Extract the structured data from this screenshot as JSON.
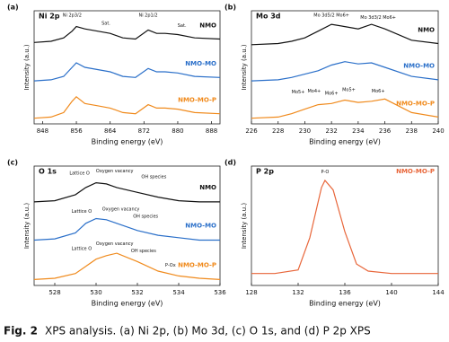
{
  "chart_data": [
    {
      "type": "line",
      "panel": "(a)",
      "title": "Ni 2p",
      "x_label": "Binding energy (eV)",
      "y_label": "Intensity (a.u.)",
      "xlim": [
        846,
        890
      ],
      "xticks": [
        848,
        856,
        864,
        872,
        880,
        888
      ],
      "ylim": [
        0,
        100
      ],
      "x": [
        846,
        850,
        853,
        855,
        856,
        858,
        861,
        864,
        867,
        870,
        873,
        875,
        877,
        880,
        884,
        890
      ],
      "series": [
        {
          "name": "NMO",
          "color": "#111111",
          "values": [
            72,
            73,
            76,
            82,
            86,
            84,
            82,
            80,
            76,
            75,
            83,
            80,
            80,
            79,
            76,
            75
          ]
        },
        {
          "name": "NMO-MO",
          "color": "#2a6fc9",
          "values": [
            38,
            39,
            42,
            50,
            54,
            50,
            48,
            46,
            42,
            41,
            49,
            46,
            46,
            45,
            42,
            41
          ]
        },
        {
          "name": "NMO-MO-P",
          "color": "#f08a1c",
          "values": [
            5,
            6,
            10,
            20,
            24,
            18,
            16,
            14,
            10,
            9,
            17,
            14,
            14,
            13,
            10,
            9
          ]
        }
      ],
      "annotations": [
        {
          "text": "Ni 2p3/2",
          "x": 855,
          "y": 96
        },
        {
          "text": "Sat.",
          "x": 863,
          "y": 89
        },
        {
          "text": "Ni 2p1/2",
          "x": 873,
          "y": 96
        },
        {
          "text": "Sat.",
          "x": 881,
          "y": 87
        }
      ]
    },
    {
      "type": "line",
      "panel": "(b)",
      "title": "Mo 3d",
      "x_label": "Binding energy (eV)",
      "y_label": "Intensity (a.u.)",
      "xlim": [
        226,
        240
      ],
      "xticks": [
        226,
        228,
        230,
        232,
        234,
        236,
        238,
        240
      ],
      "ylim": [
        0,
        100
      ],
      "x": [
        226,
        228,
        229,
        230,
        231,
        232,
        233,
        234,
        235,
        236,
        238,
        240
      ],
      "series": [
        {
          "name": "NMO",
          "color": "#111111",
          "values": [
            70,
            71,
            73,
            76,
            82,
            88,
            86,
            84,
            88,
            84,
            74,
            71
          ]
        },
        {
          "name": "NMO-MO",
          "color": "#2a6fc9",
          "values": [
            38,
            39,
            41,
            44,
            47,
            52,
            55,
            53,
            54,
            50,
            42,
            39
          ]
        },
        {
          "name": "NMO-MO-P",
          "color": "#f08a1c",
          "values": [
            5,
            6,
            9,
            13,
            17,
            18,
            21,
            19,
            20,
            22,
            10,
            6
          ]
        }
      ],
      "annotations": [
        {
          "text": "Mo 3d5/2 Mo6+",
          "x": 232,
          "y": 96
        },
        {
          "text": "Mo 3d3/2 Mo6+",
          "x": 235.5,
          "y": 94
        },
        {
          "text": "Mo5+",
          "x": 229.5,
          "y": 28
        },
        {
          "text": "Mo4+",
          "x": 230.7,
          "y": 29
        },
        {
          "text": "Mo6+",
          "x": 232,
          "y": 27
        },
        {
          "text": "Mo5+",
          "x": 233.3,
          "y": 30
        },
        {
          "text": "Mo6+",
          "x": 235.5,
          "y": 29
        }
      ]
    },
    {
      "type": "line",
      "panel": "(c)",
      "title": "O 1s",
      "x_label": "Binding energy (eV)",
      "y_label": "Intensity (a.u.)",
      "xlim": [
        527,
        536
      ],
      "xticks": [
        528,
        530,
        532,
        534,
        536
      ],
      "ylim": [
        0,
        100
      ],
      "x": [
        527,
        528,
        529,
        529.5,
        530,
        530.5,
        531,
        532,
        533,
        534,
        535,
        536
      ],
      "series": [
        {
          "name": "NMO",
          "color": "#111111",
          "values": [
            70,
            71,
            76,
            82,
            86,
            85,
            82,
            78,
            74,
            71,
            70,
            70
          ]
        },
        {
          "name": "NMO-MO",
          "color": "#2a6fc9",
          "values": [
            38,
            39,
            44,
            52,
            56,
            55,
            52,
            46,
            42,
            40,
            38,
            38
          ]
        },
        {
          "name": "NMO-MO-P",
          "color": "#f08a1c",
          "values": [
            5,
            6,
            10,
            16,
            22,
            25,
            27,
            20,
            12,
            8,
            6,
            5
          ]
        }
      ],
      "annotations": [
        {
          "text": "Lattice O",
          "x": 529.2,
          "y": 94
        },
        {
          "text": "Oxygen vacancy",
          "x": 530.9,
          "y": 96
        },
        {
          "text": "OH species",
          "x": 532.8,
          "y": 91
        },
        {
          "text": "Lattice O",
          "x": 529.3,
          "y": 62
        },
        {
          "text": "Oxygen vacancy",
          "x": 531.2,
          "y": 64
        },
        {
          "text": "OH species",
          "x": 532.4,
          "y": 58
        },
        {
          "text": "Lattice O",
          "x": 529.3,
          "y": 31
        },
        {
          "text": "Oxygen vacancy",
          "x": 530.9,
          "y": 35
        },
        {
          "text": "OH species",
          "x": 532.3,
          "y": 29
        },
        {
          "text": "P-Ox",
          "x": 533.6,
          "y": 17
        }
      ]
    },
    {
      "type": "line",
      "panel": "(d)",
      "title": "P 2p",
      "x_label": "Binding energy (eV)",
      "y_label": "Intensity (a.u.)",
      "xlim": [
        128,
        144
      ],
      "xticks": [
        128,
        132,
        136,
        140,
        144
      ],
      "ylim": [
        0,
        100
      ],
      "x": [
        128,
        130,
        132,
        133,
        134,
        134.3,
        135,
        136,
        137,
        138,
        140,
        144
      ],
      "series": [
        {
          "name": "NMO-MO-P",
          "color": "#e8663a",
          "values": [
            10,
            10,
            13,
            40,
            82,
            88,
            80,
            45,
            18,
            12,
            10,
            10
          ]
        }
      ],
      "annotations": [
        {
          "text": "P-O",
          "x": 134.3,
          "y": 95
        }
      ]
    }
  ],
  "caption": {
    "label": "Fig. 2",
    "text": "XPS analysis. (a) Ni 2p, (b) Mo 3d, (c) O 1s, and (d) P 2p XPS"
  }
}
